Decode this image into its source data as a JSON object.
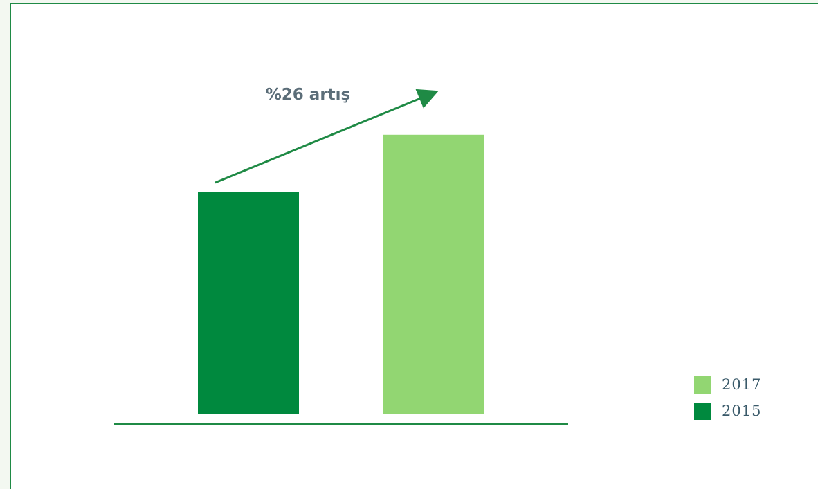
{
  "chart_data": {
    "type": "bar",
    "categories": [
      "2015",
      "2017"
    ],
    "values": [
      100,
      126
    ],
    "ylim": [
      0,
      135
    ],
    "title": "",
    "xlabel": "",
    "ylabel": "",
    "annotation": "%26 artış",
    "legend": {
      "placement": "bottom-right",
      "items": [
        {
          "label": "2017",
          "color": "#92d672"
        },
        {
          "label": "2015",
          "color": "#00893e"
        }
      ]
    },
    "colors": {
      "2015": "#00893e",
      "2017": "#92d672"
    },
    "grid": false
  },
  "colors": {
    "frame_border": "#1f8a45",
    "axis_line": "#1f8a45",
    "arrow": "#1f8a45",
    "background": "#f3f8f1"
  },
  "icons": {
    "arrow": "arrow-up-right-icon"
  }
}
